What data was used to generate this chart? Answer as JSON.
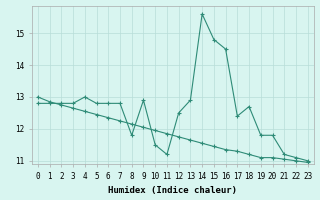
{
  "x": [
    0,
    1,
    2,
    3,
    4,
    5,
    6,
    7,
    8,
    9,
    10,
    11,
    12,
    13,
    14,
    15,
    16,
    17,
    18,
    19,
    20,
    21,
    22,
    23
  ],
  "y_data": [
    12.8,
    12.8,
    12.8,
    12.8,
    13.0,
    12.8,
    12.8,
    12.8,
    11.8,
    12.9,
    11.5,
    11.2,
    12.5,
    12.9,
    15.6,
    14.8,
    14.5,
    12.4,
    12.7,
    11.8,
    11.8,
    11.2,
    11.1,
    11.0
  ],
  "y_trend": [
    13.0,
    12.85,
    12.75,
    12.65,
    12.55,
    12.45,
    12.35,
    12.25,
    12.15,
    12.05,
    11.95,
    11.85,
    11.75,
    11.65,
    11.55,
    11.45,
    11.35,
    11.3,
    11.2,
    11.1,
    11.1,
    11.05,
    11.0,
    10.95
  ],
  "line_color": "#2e8b77",
  "bg_color": "#d8f5f0",
  "grid_color": "#b8ddd8",
  "xlabel": "Humidex (Indice chaleur)",
  "xlim": [
    -0.5,
    23.5
  ],
  "ylim": [
    10.9,
    15.85
  ],
  "yticks": [
    11,
    12,
    13,
    14,
    15
  ],
  "xticks": [
    0,
    1,
    2,
    3,
    4,
    5,
    6,
    7,
    8,
    9,
    10,
    11,
    12,
    13,
    14,
    15,
    16,
    17,
    18,
    19,
    20,
    21,
    22,
    23
  ],
  "xlabel_fontsize": 6.5,
  "tick_fontsize": 5.5
}
